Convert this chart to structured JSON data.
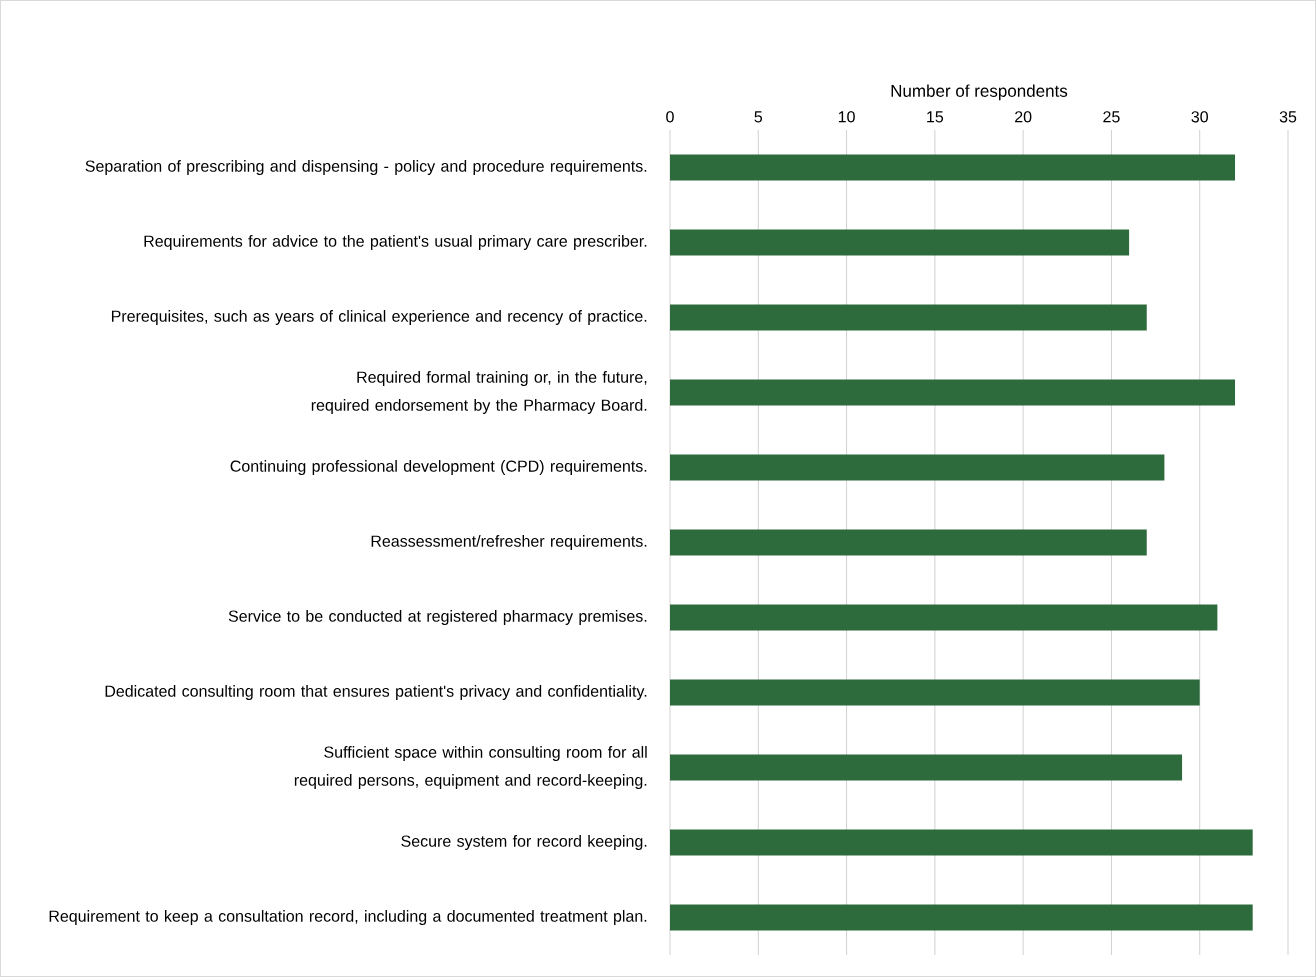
{
  "chart_data": {
    "type": "bar",
    "orientation": "horizontal",
    "xlabel": "Number of respondents",
    "categories": [
      "Separation of prescribing and dispensing - policy and procedure requirements.",
      "Requirements for advice to the patient's usual primary care prescriber.",
      "Prerequisites, such as years of clinical experience and recency of practice.",
      "Required formal training or, in the future, required endorsement by the Pharmacy Board.",
      "Continuing professional development (CPD) requirements.",
      "Reassessment/refresher requirements.",
      "Service to be conducted at registered pharmacy premises.",
      "Dedicated consulting room that ensures patient's privacy and confidentiality.",
      "Sufficient space within consulting room for all required persons, equipment and record-keeping.",
      "Secure system for record keeping.",
      "Requirement to keep a consultation record, including a documented treatment plan."
    ],
    "values": [
      32,
      26,
      27,
      32,
      28,
      27,
      31,
      30,
      29,
      33,
      33
    ],
    "color": "#2e6b3c",
    "xlim": [
      0,
      35
    ],
    "xticks": [
      0,
      5,
      10,
      15,
      20,
      25,
      30,
      35
    ],
    "grid": "x"
  }
}
